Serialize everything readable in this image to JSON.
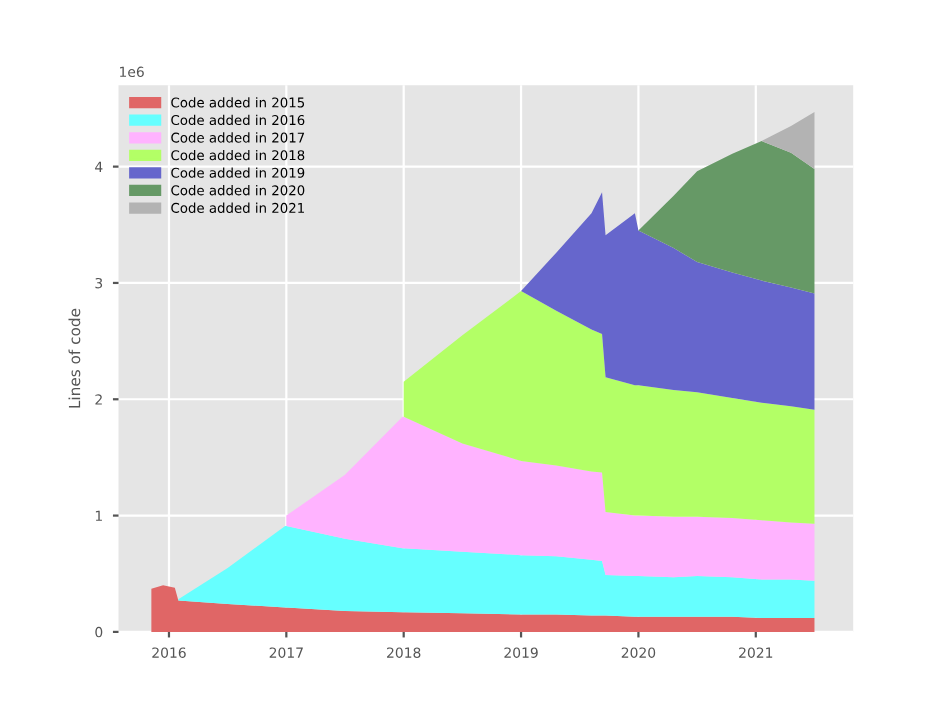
{
  "chart_data": {
    "type": "area",
    "stacked": true,
    "ylabel": "Lines of code",
    "annotations": [
      "1e6"
    ],
    "x": [
      2015.85,
      2015.95,
      2016.05,
      2016.08,
      2016.5,
      2016.99,
      2017.0,
      2017.5,
      2017.99,
      2018.0,
      2018.5,
      2019.0,
      2019.3,
      2019.6,
      2019.69,
      2019.72,
      2019.97,
      2020.0,
      2020.3,
      2020.5,
      2020.8,
      2021.05,
      2021.3,
      2021.5
    ],
    "series": [
      {
        "name": "Code added in 2015",
        "color": "#e06666",
        "values": [
          0.37,
          0.4,
          0.38,
          0.27,
          0.24,
          0.21,
          0.21,
          0.18,
          0.17,
          0.17,
          0.16,
          0.15,
          0.15,
          0.14,
          0.14,
          0.14,
          0.13,
          0.13,
          0.13,
          0.13,
          0.13,
          0.12,
          0.12,
          0.12
        ]
      },
      {
        "name": "Code added in 2016",
        "color": "#66ffff",
        "values": [
          null,
          null,
          null,
          0.01,
          0.31,
          0.7,
          0.7,
          0.62,
          0.55,
          0.55,
          0.53,
          0.51,
          0.5,
          0.48,
          0.47,
          0.35,
          0.35,
          0.35,
          0.34,
          0.35,
          0.34,
          0.33,
          0.33,
          0.32
        ]
      },
      {
        "name": "Code added in 2017",
        "color": "#ffb3ff",
        "values": [
          null,
          null,
          null,
          null,
          null,
          null,
          0.09,
          0.55,
          1.13,
          1.13,
          0.93,
          0.81,
          0.78,
          0.76,
          0.76,
          0.54,
          0.52,
          0.52,
          0.52,
          0.51,
          0.51,
          0.51,
          0.49,
          0.49
        ]
      },
      {
        "name": "Code added in 2018",
        "color": "#b3ff66",
        "values": [
          null,
          null,
          null,
          null,
          null,
          null,
          null,
          null,
          null,
          0.3,
          0.93,
          1.46,
          1.33,
          1.22,
          1.19,
          1.16,
          1.12,
          1.12,
          1.09,
          1.07,
          1.03,
          1.01,
          1.0,
          0.98
        ]
      },
      {
        "name": "Code added in 2019",
        "color": "#6666cc",
        "values": [
          null,
          null,
          null,
          null,
          null,
          null,
          null,
          null,
          null,
          null,
          null,
          0.0,
          0.5,
          1.0,
          1.22,
          1.22,
          1.48,
          1.33,
          1.22,
          1.12,
          1.08,
          1.05,
          1.02,
          1.0
        ]
      },
      {
        "name": "Code added in 2020",
        "color": "#669966",
        "values": [
          null,
          null,
          null,
          null,
          null,
          null,
          null,
          null,
          null,
          null,
          null,
          null,
          null,
          null,
          null,
          null,
          null,
          0.0,
          0.45,
          0.78,
          1.02,
          1.2,
          1.16,
          1.07
        ]
      },
      {
        "name": "Code added in 2021",
        "color": "#b3b3b3",
        "values": [
          null,
          null,
          null,
          null,
          null,
          null,
          null,
          null,
          null,
          null,
          null,
          null,
          null,
          null,
          null,
          null,
          null,
          null,
          null,
          null,
          null,
          0.0,
          0.23,
          0.49
        ]
      }
    ],
    "xlim": [
      2015.57,
      2021.83
    ],
    "xticks": [
      2016,
      2017,
      2018,
      2019,
      2020,
      2021
    ],
    "ylim": [
      0,
      4.7
    ],
    "yticks": [
      0,
      1,
      2,
      3,
      4
    ],
    "grid": true,
    "legend": "top left"
  }
}
